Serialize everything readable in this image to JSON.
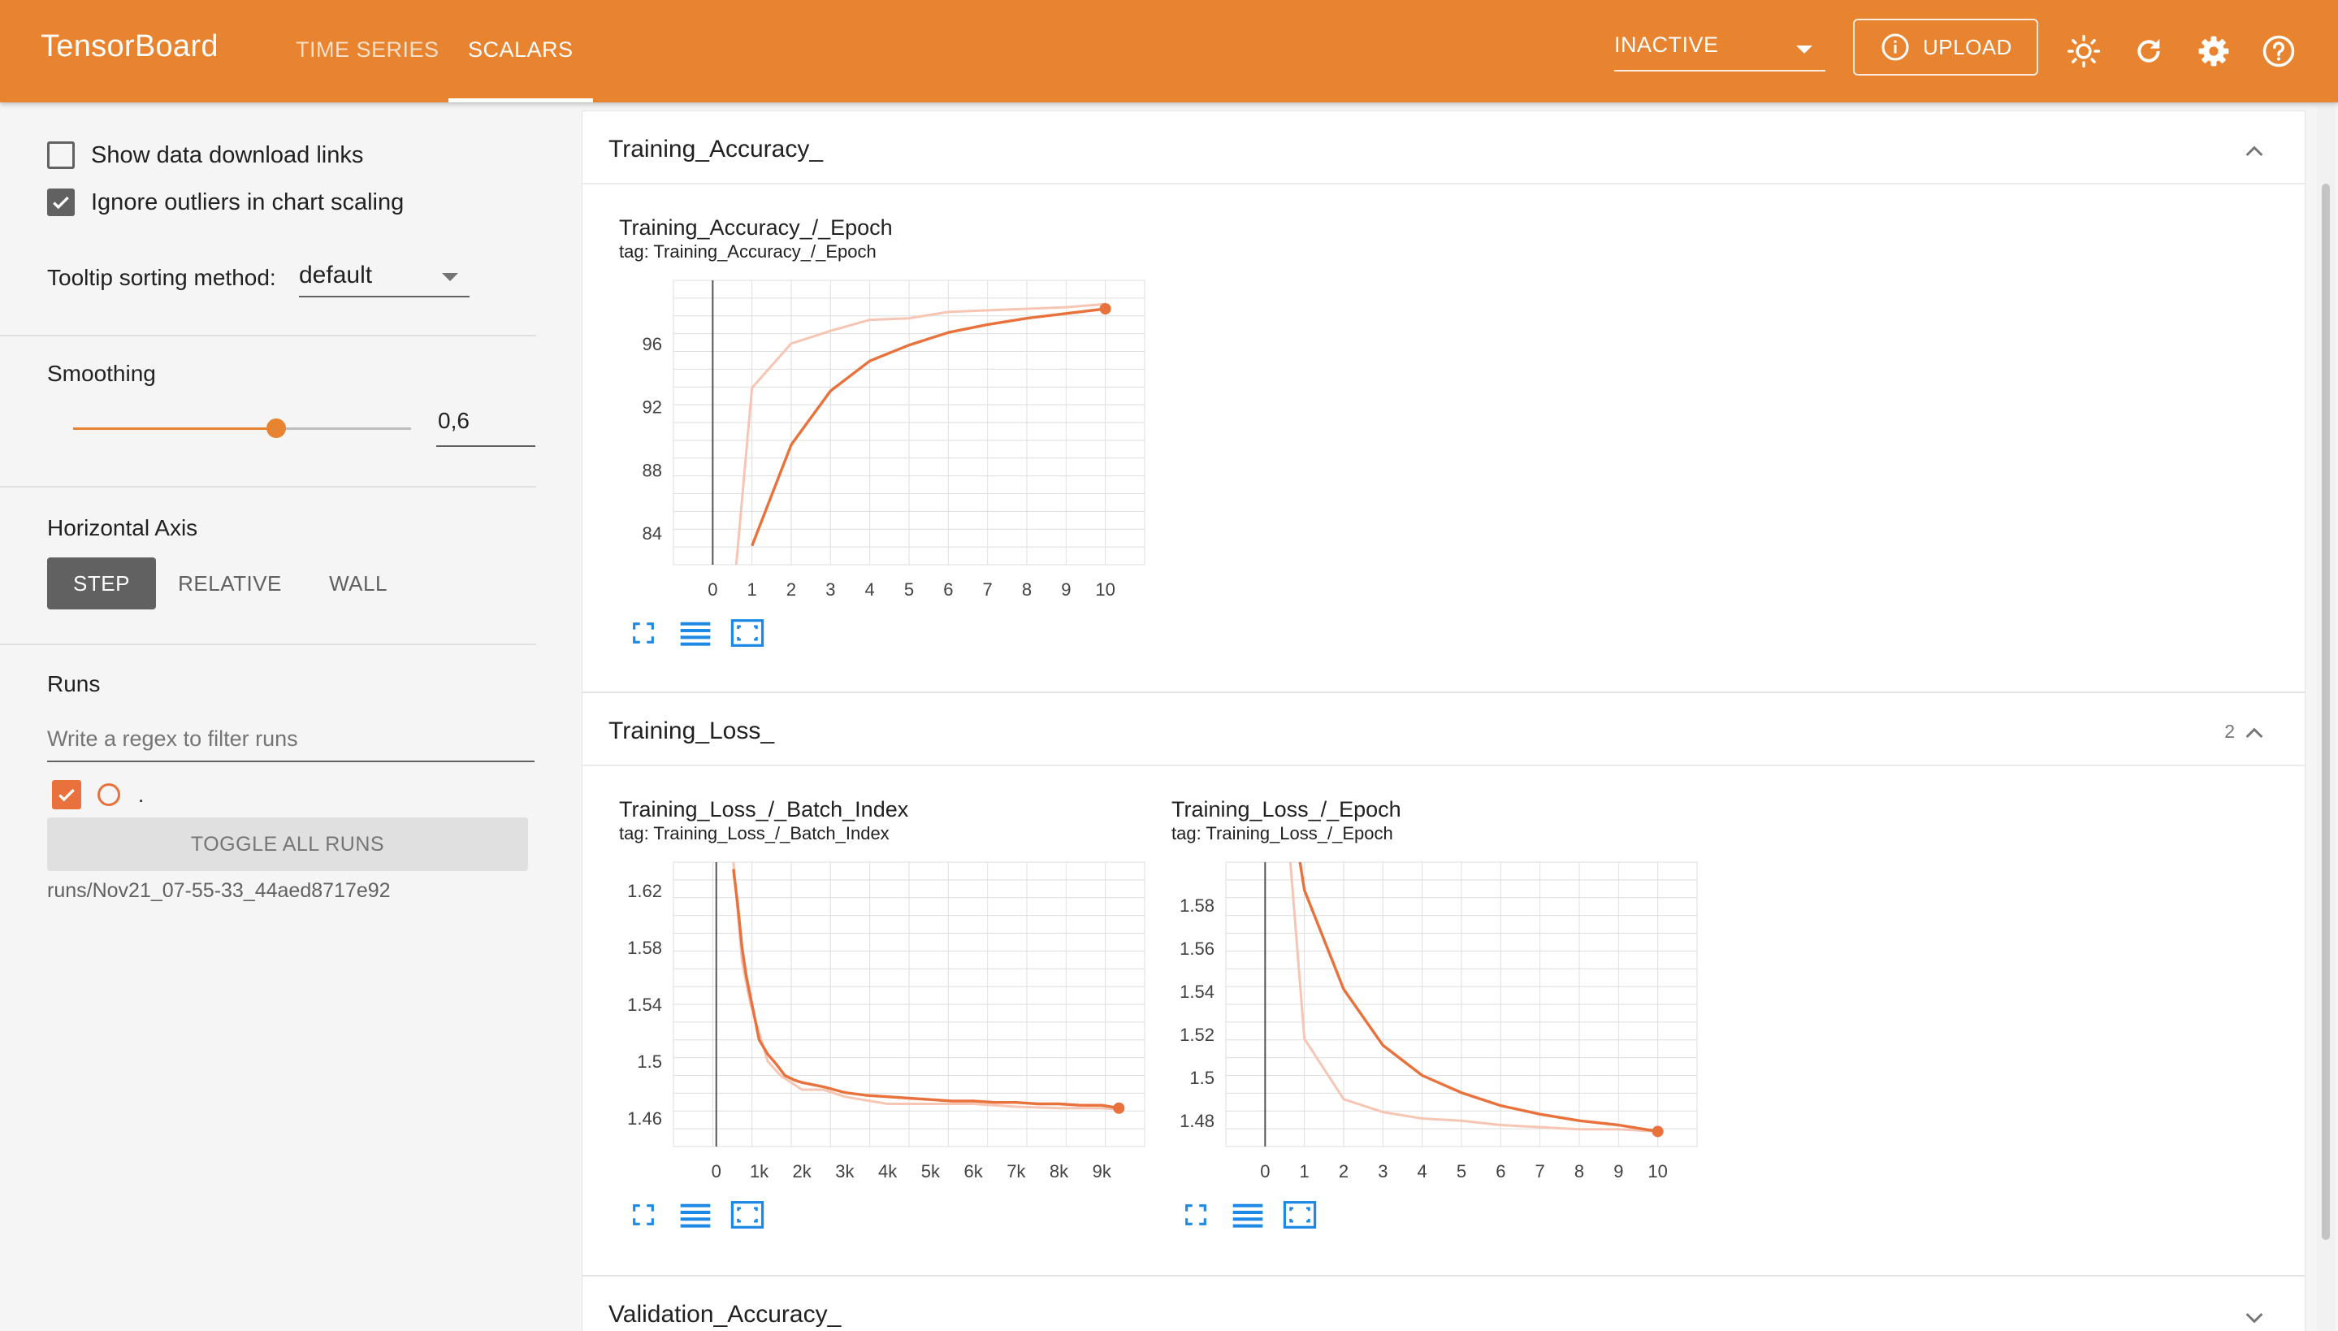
{
  "header": {
    "brand": "TensorBoard",
    "tabs": [
      {
        "label": "TIME SERIES",
        "active": false
      },
      {
        "label": "SCALARS",
        "active": true
      }
    ],
    "run_selector": "INACTIVE",
    "upload_label": "UPLOAD",
    "icons": [
      "info-icon",
      "brightness-icon",
      "refresh-icon",
      "settings-icon",
      "help-icon"
    ],
    "accent_color": "#e8832f"
  },
  "sidebar": {
    "show_download_links": {
      "label": "Show data download links",
      "checked": false
    },
    "ignore_outliers": {
      "label": "Ignore outliers in chart scaling",
      "checked": true
    },
    "tooltip_sorting": {
      "label": "Tooltip sorting method:",
      "value": "default"
    },
    "smoothing": {
      "label": "Smoothing",
      "value": "0,6",
      "level": 0.6
    },
    "horizontal_axis": {
      "label": "Horizontal Axis",
      "options": [
        "STEP",
        "RELATIVE",
        "WALL"
      ],
      "selected": "STEP"
    },
    "runs": {
      "label": "Runs",
      "filter_placeholder": "Write a regex to filter runs",
      "run_label": ".",
      "toggle_all_label": "TOGGLE ALL RUNS",
      "run_path": "runs/Nov21_07-55-33_44aed8717e92",
      "run_color": "#e8713c"
    }
  },
  "cards": [
    {
      "title": "Training_Accuracy_",
      "count": "",
      "expanded": true
    },
    {
      "title": "Training_Loss_",
      "count": "2",
      "expanded": true
    },
    {
      "title": "Validation_Accuracy_",
      "count": "",
      "expanded": false
    }
  ],
  "chart_data": [
    {
      "type": "line",
      "title": "Training_Accuracy_/_Epoch",
      "tag": "tag: Training_Accuracy_/_Epoch",
      "x_ticks": [
        "0",
        "1",
        "2",
        "3",
        "4",
        "5",
        "6",
        "7",
        "8",
        "9",
        "10"
      ],
      "y_ticks": [
        "84",
        "88",
        "92",
        "96"
      ],
      "xlim": [
        -1,
        11
      ],
      "ylim": [
        82,
        100
      ],
      "grid": true,
      "series": [
        {
          "style": "smoothed",
          "x": [
            1,
            2,
            3,
            4,
            5,
            6,
            7,
            8,
            9,
            10
          ],
          "y": [
            83.2,
            89.6,
            93.0,
            94.9,
            95.9,
            96.7,
            97.2,
            97.6,
            97.9,
            98.2
          ]
        },
        {
          "style": "raw",
          "x": [
            0.6,
            1,
            2,
            3,
            4,
            5,
            6,
            7,
            8,
            9,
            10
          ],
          "y": [
            82,
            93.2,
            96.0,
            96.8,
            97.5,
            97.6,
            98.0,
            98.1,
            98.2,
            98.3,
            98.5
          ]
        }
      ]
    },
    {
      "type": "line",
      "title": "Training_Loss_/_Batch_Index",
      "tag": "tag: Training_Loss_/_Batch_Index",
      "x_ticks": [
        "0",
        "1k",
        "2k",
        "3k",
        "4k",
        "5k",
        "6k",
        "7k",
        "8k",
        "9k"
      ],
      "y_ticks": [
        "1.46",
        "1.5",
        "1.54",
        "1.58",
        "1.62"
      ],
      "xlim": [
        -1000,
        10000
      ],
      "ylim": [
        1.44,
        1.64
      ],
      "grid": true,
      "series": [
        {
          "style": "smoothed",
          "x": [
            400,
            500,
            600,
            700,
            800,
            900,
            1000,
            1200,
            1400,
            1600,
            1800,
            2000,
            2500,
            3000,
            3500,
            4000,
            4500,
            5000,
            5500,
            6000,
            6500,
            7000,
            7500,
            8000,
            8500,
            9000,
            9400
          ],
          "y": [
            1.635,
            1.61,
            1.58,
            1.56,
            1.545,
            1.53,
            1.515,
            1.505,
            1.498,
            1.49,
            1.487,
            1.485,
            1.482,
            1.478,
            1.476,
            1.475,
            1.474,
            1.473,
            1.472,
            1.472,
            1.471,
            1.471,
            1.47,
            1.47,
            1.469,
            1.469,
            1.467
          ]
        },
        {
          "style": "raw",
          "x": [
            400,
            600,
            800,
            1000,
            1200,
            1500,
            2000,
            2500,
            3000,
            4000,
            5000,
            6000,
            7000,
            8000,
            9000,
            9400
          ],
          "y": [
            1.64,
            1.57,
            1.54,
            1.52,
            1.5,
            1.49,
            1.48,
            1.48,
            1.475,
            1.47,
            1.47,
            1.47,
            1.468,
            1.467,
            1.467,
            1.466
          ]
        }
      ]
    },
    {
      "type": "line",
      "title": "Training_Loss_/_Epoch",
      "tag": "tag: Training_Loss_/_Epoch",
      "x_ticks": [
        "0",
        "1",
        "2",
        "3",
        "4",
        "5",
        "6",
        "7",
        "8",
        "9",
        "10"
      ],
      "y_ticks": [
        "1.48",
        "1.5",
        "1.52",
        "1.54",
        "1.56",
        "1.58"
      ],
      "xlim": [
        -1,
        11
      ],
      "ylim": [
        1.468,
        1.6
      ],
      "grid": true,
      "series": [
        {
          "style": "smoothed",
          "x": [
            0.8,
            1,
            2,
            3,
            4,
            5,
            6,
            7,
            8,
            9,
            10
          ],
          "y": [
            1.61,
            1.587,
            1.541,
            1.515,
            1.501,
            1.493,
            1.487,
            1.483,
            1.48,
            1.478,
            1.475
          ]
        },
        {
          "style": "raw",
          "x": [
            0.6,
            1,
            2,
            3,
            4,
            5,
            6,
            7,
            8,
            9,
            10
          ],
          "y": [
            1.61,
            1.518,
            1.49,
            1.484,
            1.481,
            1.48,
            1.478,
            1.477,
            1.476,
            1.476,
            1.475
          ]
        }
      ]
    }
  ]
}
